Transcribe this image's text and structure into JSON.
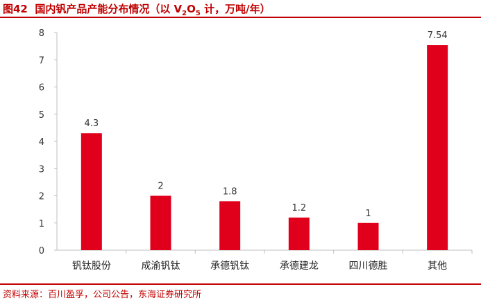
{
  "figure": {
    "title_prefix": "图42",
    "title_a": "国内钒产品产能分布情况（以 V",
    "title_sub1": "2",
    "title_mid": "O",
    "title_sub2": "5",
    "title_b": " 计，万吨/年）",
    "source": "资料来源：百川盈孚，公司公告，东海证券研究所"
  },
  "colors": {
    "accent": "#c00000",
    "bar": "#e0001b"
  },
  "chart_data": {
    "type": "bar",
    "title": "国内钒产品产能分布情况（以 V2O5 计，万吨/年）",
    "categories": [
      "钒钛股份",
      "成渝钒钛",
      "承德钒钛",
      "承德建龙",
      "四川德胜",
      "其他"
    ],
    "values": [
      4.3,
      2,
      1.8,
      1.2,
      1,
      7.54
    ],
    "value_labels": [
      "4.3",
      "2",
      "1.8",
      "1.2",
      "1",
      "7.54"
    ],
    "ylim": [
      0,
      8
    ],
    "yticks": [
      "0",
      "1",
      "2",
      "3",
      "4",
      "5",
      "6",
      "7",
      "8"
    ],
    "xlabel": "",
    "ylabel": "",
    "grid": false,
    "legend": false
  }
}
